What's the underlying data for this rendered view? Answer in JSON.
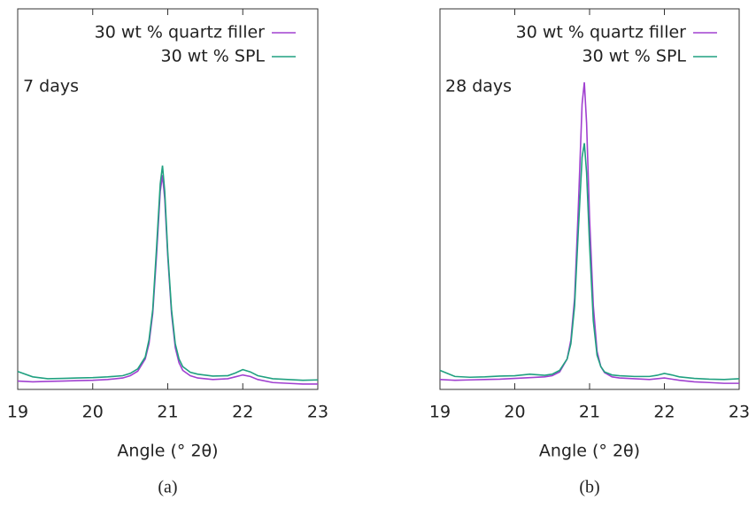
{
  "chart_data": [
    {
      "type": "line",
      "annotation": "7 days",
      "xlabel": "Angle (° 2θ)",
      "caption": "(a)",
      "x": [
        19,
        19.2,
        19.4,
        19.6,
        19.8,
        20,
        20.2,
        20.4,
        20.5,
        20.6,
        20.7,
        20.75,
        20.8,
        20.85,
        20.9,
        20.93,
        20.96,
        21,
        21.05,
        21.1,
        21.15,
        21.2,
        21.3,
        21.4,
        21.6,
        21.8,
        21.9,
        22,
        22.1,
        22.2,
        22.4,
        22.6,
        22.8,
        23
      ],
      "series": [
        {
          "name": "30 wt % quartz filler",
          "color": "#a040d0",
          "values": [
            2.2,
            2.0,
            2.1,
            2.2,
            2.3,
            2.4,
            2.6,
            3.0,
            3.6,
            4.8,
            8,
            12,
            20,
            35,
            52,
            56.3,
            50,
            35,
            20,
            11,
            7,
            5,
            3.6,
            3,
            2.6,
            2.8,
            3.3,
            3.8,
            3.4,
            2.6,
            1.8,
            1.6,
            1.4,
            1.4
          ]
        },
        {
          "name": "30 wt % SPL",
          "color": "#20a080",
          "values": [
            4.7,
            3.3,
            2.8,
            2.9,
            3.0,
            3.1,
            3.3,
            3.6,
            4.2,
            5.4,
            8.5,
            13,
            21,
            37,
            54,
            58.8,
            52,
            36,
            21,
            12,
            8,
            6,
            4.5,
            4,
            3.5,
            3.6,
            4.3,
            5.2,
            4.6,
            3.6,
            2.8,
            2.6,
            2.4,
            2.5
          ]
        }
      ],
      "xlim": [
        19,
        23
      ],
      "xticks": [
        19,
        20,
        21,
        22,
        23
      ],
      "ylim": [
        0,
        100
      ]
    },
    {
      "type": "line",
      "annotation": "28 days",
      "xlabel": "Angle (° 2θ)",
      "caption": "(b)",
      "x": [
        19,
        19.2,
        19.4,
        19.6,
        19.8,
        20,
        20.2,
        20.4,
        20.5,
        20.6,
        20.7,
        20.75,
        20.8,
        20.85,
        20.9,
        20.93,
        20.96,
        21,
        21.05,
        21.1,
        21.15,
        21.2,
        21.3,
        21.4,
        21.6,
        21.8,
        21.9,
        22,
        22.1,
        22.2,
        22.4,
        22.6,
        22.8,
        23
      ],
      "series": [
        {
          "name": "30 wt % quartz filler",
          "color": "#a040d0",
          "values": [
            2.6,
            2.4,
            2.5,
            2.6,
            2.7,
            2.9,
            3.1,
            3.3,
            3.6,
            4.6,
            8,
            13,
            24,
            48,
            75,
            80.7,
            70,
            45,
            22,
            10,
            6,
            4.4,
            3.3,
            3,
            2.8,
            2.6,
            2.8,
            3,
            2.7,
            2.4,
            2.0,
            1.8,
            1.6,
            1.6
          ]
        },
        {
          "name": "30 wt % SPL",
          "color": "#20a080",
          "values": [
            5,
            3.4,
            3.2,
            3.3,
            3.5,
            3.6,
            4.0,
            3.7,
            4.0,
            5,
            8,
            12,
            22,
            42,
            61,
            64.7,
            57,
            38,
            18,
            9,
            6,
            4.6,
            3.8,
            3.6,
            3.4,
            3.4,
            3.7,
            4.2,
            3.8,
            3.3,
            2.9,
            2.7,
            2.6,
            2.8
          ]
        }
      ],
      "xlim": [
        19,
        23
      ],
      "xticks": [
        19,
        20,
        21,
        22,
        23
      ],
      "ylim": [
        0,
        100
      ]
    }
  ]
}
